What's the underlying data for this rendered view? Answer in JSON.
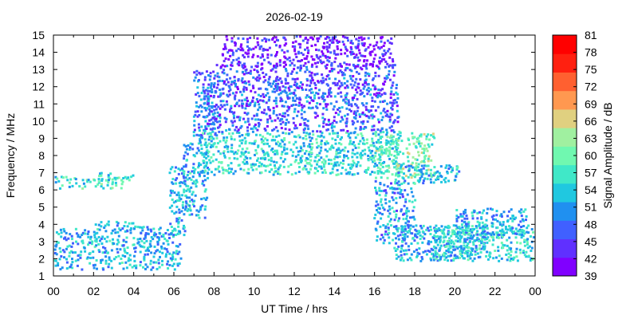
{
  "chart_data": {
    "type": "scatter",
    "title": "2026-02-19",
    "xlabel": "UT Time / hrs",
    "ylabel": "Frequency / MHz",
    "xlim": [
      0,
      24
    ],
    "ylim": [
      1,
      15
    ],
    "x_ticks": [
      "00",
      "02",
      "04",
      "06",
      "08",
      "10",
      "12",
      "14",
      "16",
      "18",
      "20",
      "22",
      "00"
    ],
    "y_ticks": [
      "1",
      "2",
      "3",
      "4",
      "5",
      "6",
      "7",
      "8",
      "9",
      "10",
      "11",
      "12",
      "13",
      "14",
      "15"
    ],
    "grid": false,
    "colorbar": {
      "label": "Signal Amplitude / dB",
      "range": [
        39,
        81
      ],
      "ticks": [
        "81",
        "78",
        "75",
        "72",
        "69",
        "66",
        "63",
        "60",
        "57",
        "54",
        "51",
        "48",
        "45",
        "42",
        "39"
      ],
      "colors": [
        "#8000ff",
        "#6030ff",
        "#4060ff",
        "#2090f0",
        "#20c8e0",
        "#40e8c8",
        "#70f8b0",
        "#a0f0a0",
        "#e0d080",
        "#ff9850",
        "#ff6030",
        "#ff2010",
        "#ff0000"
      ]
    },
    "series": [
      {
        "regions": [
          {
            "x": [
              0.0,
              2.0
            ],
            "y": [
              1.5,
              3.8
            ],
            "value": 52
          },
          {
            "x": [
              2.0,
              4.0
            ],
            "y": [
              1.5,
              4.2
            ],
            "value": 53
          },
          {
            "x": [
              4.0,
              6.3
            ],
            "y": [
              1.5,
              4.0
            ],
            "value": 52
          },
          {
            "x": [
              0.0,
              3.5
            ],
            "y": [
              6.2,
              6.8
            ],
            "value": 57
          },
          {
            "x": [
              2.0,
              4.0
            ],
            "y": [
              6.7,
              7.0
            ],
            "value": 54
          },
          {
            "x": [
              5.8,
              6.6
            ],
            "y": [
              3.5,
              7.5
            ],
            "value": 52
          },
          {
            "x": [
              6.5,
              7.6
            ],
            "y": [
              4.5,
              8.8
            ],
            "value": 53
          },
          {
            "x": [
              7.0,
              8.0
            ],
            "y": [
              9.0,
              13.0
            ],
            "value": 49
          },
          {
            "x": [
              7.3,
              17.2
            ],
            "y": [
              7.0,
              9.5
            ],
            "value": 55
          },
          {
            "x": [
              7.5,
              17.2
            ],
            "y": [
              9.5,
              12.0
            ],
            "value": 47
          },
          {
            "x": [
              8.0,
              17.0
            ],
            "y": [
              12.0,
              13.3
            ],
            "value": 46
          },
          {
            "x": [
              8.4,
              16.8
            ],
            "y": [
              13.3,
              15.0
            ],
            "value": 42
          },
          {
            "x": [
              16.0,
              19.0
            ],
            "y": [
              6.8,
              9.4
            ],
            "value": 60
          },
          {
            "x": [
              17.0,
              20.2
            ],
            "y": [
              6.5,
              7.5
            ],
            "value": 53
          },
          {
            "x": [
              17.0,
              21.5
            ],
            "y": [
              2.0,
              4.0
            ],
            "value": 52
          },
          {
            "x": [
              19.0,
              24.0
            ],
            "y": [
              2.0,
              4.0
            ],
            "value": 55
          },
          {
            "x": [
              20.0,
              23.5
            ],
            "y": [
              3.5,
              5.0
            ],
            "value": 52
          },
          {
            "x": [
              16.0,
              18.0
            ],
            "y": [
              3.0,
              6.5
            ],
            "value": 51
          }
        ]
      }
    ]
  }
}
